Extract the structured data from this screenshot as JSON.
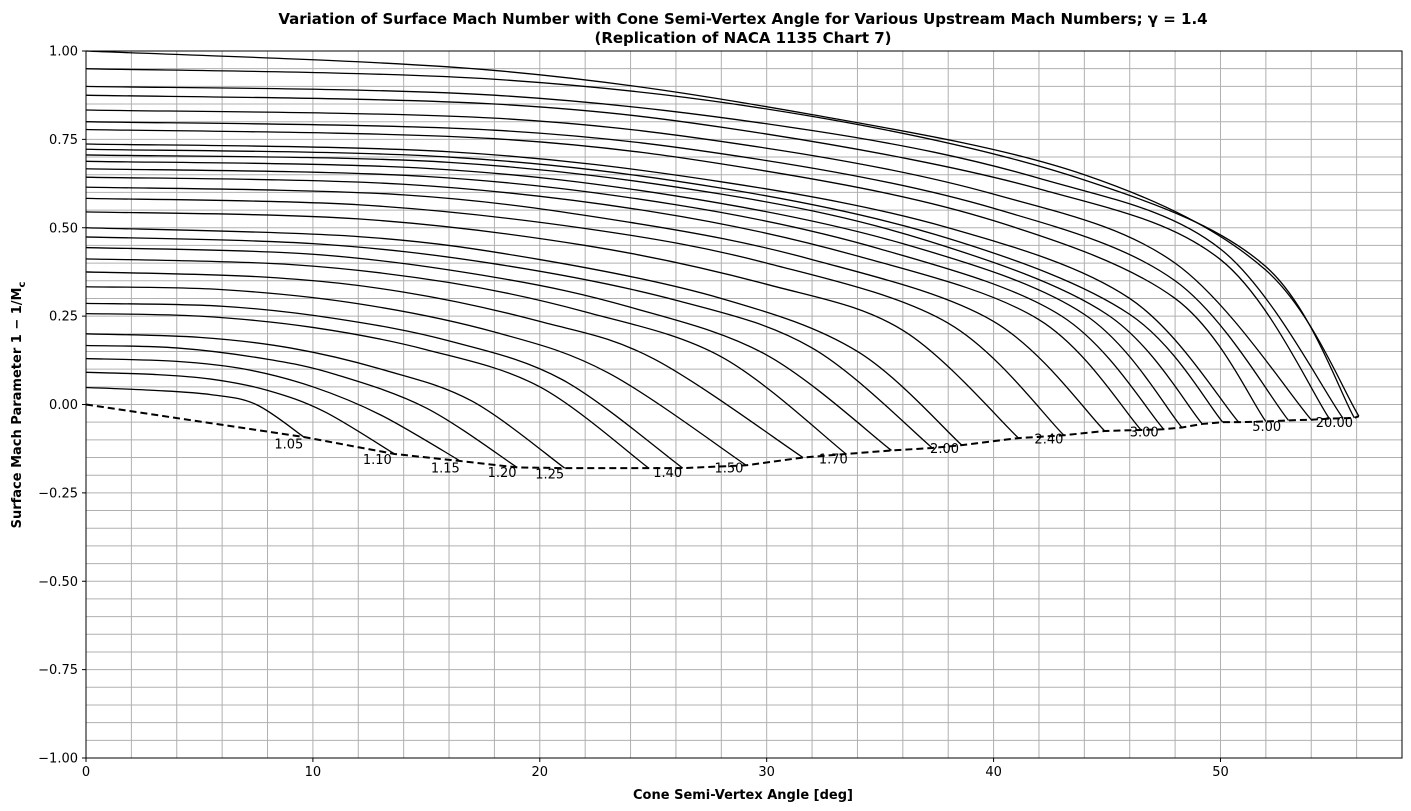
{
  "chart_data": {
    "type": "line",
    "title_line1": "Variation of Surface Mach Number with Cone Semi-Vertex Angle for Various Upstream Mach Numbers; γ = 1.4",
    "title_line2": "(Replication of NACA 1135 Chart 7)",
    "xlabel": "Cone Semi-Vertex Angle [deg]",
    "ylabel_main": "Surface Mach Parameter 1 − 1/M",
    "ylabel_sub": "c",
    "xlim": [
      0,
      58
    ],
    "ylim": [
      -1.0,
      1.0
    ],
    "x_ticks": [
      0,
      10,
      20,
      30,
      40,
      50
    ],
    "x_tick_labels": [
      "0",
      "10",
      "20",
      "30",
      "40",
      "50"
    ],
    "y_ticks": [
      -1.0,
      -0.75,
      -0.5,
      -0.25,
      0.0,
      0.25,
      0.5,
      0.75,
      1.0
    ],
    "y_tick_labels": [
      "−1.00",
      "−0.75",
      "−0.50",
      "−0.25",
      "0.00",
      "0.25",
      "0.50",
      "0.75",
      "1.00"
    ],
    "x_minor_step": 2,
    "y_minor_step": 0.05,
    "grid": true,
    "series": [
      {
        "values": [
          [
            0,
            0.048
          ],
          [
            3,
            0.04
          ],
          [
            5.5,
            0.028
          ],
          [
            7.5,
            0.0
          ],
          [
            9.6,
            -0.092
          ]
        ]
      },
      {
        "values": [
          [
            0,
            0.091
          ],
          [
            3,
            0.085
          ],
          [
            5.5,
            0.072
          ],
          [
            8,
            0.04
          ],
          [
            10.5,
            -0.02
          ],
          [
            13.6,
            -0.14
          ]
        ]
      },
      {
        "values": [
          [
            0,
            0.13
          ],
          [
            4,
            0.122
          ],
          [
            7,
            0.1
          ],
          [
            10,
            0.05
          ],
          [
            13,
            -0.03
          ],
          [
            16.5,
            -0.16
          ]
        ]
      },
      {
        "values": [
          [
            0,
            0.167
          ],
          [
            4,
            0.16
          ],
          [
            8,
            0.128
          ],
          [
            11,
            0.085
          ],
          [
            15,
            -0.01
          ],
          [
            19.0,
            -0.178
          ]
        ]
      },
      {
        "values": [
          [
            0,
            0.2
          ],
          [
            5,
            0.19
          ],
          [
            9,
            0.16
          ],
          [
            13,
            0.1
          ],
          [
            17,
            0.01
          ],
          [
            21.1,
            -0.18
          ]
        ]
      },
      {
        "values": [
          [
            0,
            0.257
          ],
          [
            5,
            0.25
          ],
          [
            10,
            0.218
          ],
          [
            15,
            0.155
          ],
          [
            20,
            0.05
          ],
          [
            24.8,
            -0.18
          ]
        ]
      },
      {
        "values": [
          [
            0,
            0.286
          ],
          [
            6,
            0.278
          ],
          [
            11,
            0.243
          ],
          [
            16,
            0.18
          ],
          [
            21,
            0.07
          ],
          [
            26.3,
            -0.18
          ]
        ]
      },
      {
        "values": [
          [
            0,
            0.333
          ],
          [
            6,
            0.325
          ],
          [
            12,
            0.285
          ],
          [
            18,
            0.205
          ],
          [
            23,
            0.09
          ],
          [
            29.1,
            -0.172
          ]
        ]
      },
      {
        "values": [
          [
            0,
            0.375
          ],
          [
            8,
            0.36
          ],
          [
            14,
            0.318
          ],
          [
            20,
            0.235
          ],
          [
            25,
            0.13
          ],
          [
            31.6,
            -0.15
          ]
        ]
      },
      {
        "values": [
          [
            0,
            0.412
          ],
          [
            9,
            0.396
          ],
          [
            16,
            0.345
          ],
          [
            22,
            0.262
          ],
          [
            28,
            0.135
          ],
          [
            33.5,
            -0.14
          ]
        ]
      },
      {
        "values": [
          [
            0,
            0.444
          ],
          [
            10,
            0.425
          ],
          [
            18,
            0.36
          ],
          [
            24,
            0.275
          ],
          [
            30,
            0.14
          ],
          [
            35.5,
            -0.13
          ]
        ]
      },
      {
        "values": [
          [
            0,
            0.474
          ],
          [
            10,
            0.455
          ],
          [
            18,
            0.398
          ],
          [
            26,
            0.295
          ],
          [
            32,
            0.16
          ],
          [
            37.3,
            -0.123
          ]
        ]
      },
      {
        "values": [
          [
            0,
            0.5
          ],
          [
            12,
            0.475
          ],
          [
            20,
            0.41
          ],
          [
            28,
            0.3
          ],
          [
            34,
            0.15
          ],
          [
            38.6,
            -0.115
          ]
        ]
      },
      {
        "values": [
          [
            0,
            0.545
          ],
          [
            12,
            0.525
          ],
          [
            22,
            0.45
          ],
          [
            30,
            0.34
          ],
          [
            36,
            0.21
          ],
          [
            41.1,
            -0.095
          ]
        ]
      },
      {
        "values": [
          [
            0,
            0.583
          ],
          [
            12,
            0.565
          ],
          [
            22,
            0.498
          ],
          [
            30,
            0.4
          ],
          [
            38,
            0.23
          ],
          [
            43.1,
            -0.087
          ]
        ]
      },
      {
        "values": [
          [
            0,
            0.615
          ],
          [
            14,
            0.593
          ],
          [
            24,
            0.515
          ],
          [
            32,
            0.41
          ],
          [
            40,
            0.235
          ],
          [
            44.9,
            -0.075
          ]
        ]
      },
      {
        "values": [
          [
            0,
            0.643
          ],
          [
            14,
            0.623
          ],
          [
            25,
            0.545
          ],
          [
            34,
            0.42
          ],
          [
            42,
            0.24
          ],
          [
            46.5,
            -0.072
          ]
        ]
      },
      {
        "values": [
          [
            0,
            0.667
          ],
          [
            15,
            0.645
          ],
          [
            26,
            0.565
          ],
          [
            35,
            0.44
          ],
          [
            43,
            0.25
          ],
          [
            47.5,
            -0.07
          ]
        ]
      },
      {
        "values": [
          [
            0,
            0.688
          ],
          [
            15,
            0.668
          ],
          [
            26,
            0.59
          ],
          [
            36,
            0.455
          ],
          [
            44,
            0.255
          ],
          [
            48.3,
            -0.065
          ]
        ]
      },
      {
        "values": [
          [
            0,
            0.706
          ],
          [
            16,
            0.685
          ],
          [
            28,
            0.595
          ],
          [
            37,
            0.465
          ],
          [
            45,
            0.255
          ],
          [
            49.2,
            -0.055
          ]
        ]
      },
      {
        "values": [
          [
            0,
            0.722
          ],
          [
            16,
            0.7
          ],
          [
            28,
            0.612
          ],
          [
            38,
            0.47
          ],
          [
            46,
            0.255
          ],
          [
            50.1,
            -0.05
          ]
        ]
      },
      {
        "values": [
          [
            0,
            0.737
          ],
          [
            16,
            0.715
          ],
          [
            28,
            0.63
          ],
          [
            38,
            0.5
          ],
          [
            46,
            0.3
          ],
          [
            50.8,
            -0.05
          ]
        ]
      },
      {
        "values": [
          [
            0,
            0.778
          ],
          [
            18,
            0.752
          ],
          [
            30,
            0.66
          ],
          [
            40,
            0.52
          ],
          [
            48,
            0.3
          ],
          [
            52.0,
            -0.048
          ]
        ]
      },
      {
        "values": [
          [
            0,
            0.8
          ],
          [
            18,
            0.776
          ],
          [
            30,
            0.69
          ],
          [
            40,
            0.555
          ],
          [
            48,
            0.35
          ],
          [
            53.0,
            -0.045
          ]
        ]
      },
      {
        "values": [
          [
            0,
            0.833
          ],
          [
            18,
            0.81
          ],
          [
            30,
            0.725
          ],
          [
            40,
            0.595
          ],
          [
            48,
            0.4
          ],
          [
            54.0,
            -0.043
          ]
        ]
      },
      {
        "values": [
          [
            0,
            0.875
          ],
          [
            18,
            0.85
          ],
          [
            30,
            0.765
          ],
          [
            42,
            0.61
          ],
          [
            50,
            0.41
          ],
          [
            54.8,
            -0.04
          ]
        ]
      },
      {
        "values": [
          [
            0,
            0.9
          ],
          [
            18,
            0.875
          ],
          [
            32,
            0.775
          ],
          [
            42,
            0.64
          ],
          [
            50,
            0.44
          ],
          [
            55.4,
            -0.039
          ]
        ]
      },
      {
        "values": [
          [
            0,
            0.95
          ],
          [
            18,
            0.92
          ],
          [
            32,
            0.815
          ],
          [
            44,
            0.635
          ],
          [
            52,
            0.39
          ],
          [
            55.9,
            -0.038
          ]
        ]
      },
      {
        "values": [
          [
            0,
            1.0
          ],
          [
            18,
            0.945
          ],
          [
            32,
            0.82
          ],
          [
            44,
            0.65
          ],
          [
            52,
            0.38
          ],
          [
            56.1,
            -0.033
          ]
        ]
      }
    ],
    "limit_line": [
      [
        0,
        0.0
      ],
      [
        5,
        -0.048
      ],
      [
        9.6,
        -0.092
      ],
      [
        13.6,
        -0.14
      ],
      [
        16.5,
        -0.16
      ],
      [
        19.0,
        -0.178
      ],
      [
        21.1,
        -0.18
      ],
      [
        24.8,
        -0.18
      ],
      [
        26.3,
        -0.18
      ],
      [
        29.1,
        -0.172
      ],
      [
        31.6,
        -0.15
      ],
      [
        33.5,
        -0.14
      ],
      [
        35.5,
        -0.13
      ],
      [
        37.3,
        -0.123
      ],
      [
        38.6,
        -0.115
      ],
      [
        41.1,
        -0.095
      ],
      [
        43.1,
        -0.087
      ],
      [
        44.9,
        -0.075
      ],
      [
        46.5,
        -0.072
      ],
      [
        47.5,
        -0.07
      ],
      [
        48.3,
        -0.065
      ],
      [
        49.2,
        -0.055
      ],
      [
        50.1,
        -0.05
      ],
      [
        50.8,
        -0.05
      ],
      [
        52.0,
        -0.048
      ],
      [
        53.0,
        -0.045
      ],
      [
        54.0,
        -0.043
      ],
      [
        54.8,
        -0.04
      ],
      [
        55.4,
        -0.039
      ],
      [
        55.9,
        -0.038
      ],
      [
        56.1,
        -0.033
      ]
    ],
    "curve_labels": [
      {
        "text": "1.05",
        "x": 8.3,
        "y": -0.125
      },
      {
        "text": "1.10",
        "x": 12.2,
        "y": -0.168
      },
      {
        "text": "1.15",
        "x": 15.2,
        "y": -0.192
      },
      {
        "text": "1.20",
        "x": 17.7,
        "y": -0.205
      },
      {
        "text": "1.25",
        "x": 19.8,
        "y": -0.21
      },
      {
        "text": "1.40",
        "x": 25.0,
        "y": -0.205
      },
      {
        "text": "1.50",
        "x": 27.7,
        "y": -0.193
      },
      {
        "text": "1.70",
        "x": 32.3,
        "y": -0.167
      },
      {
        "text": "2.00",
        "x": 37.2,
        "y": -0.137
      },
      {
        "text": "2.40",
        "x": 41.8,
        "y": -0.11
      },
      {
        "text": "3.00",
        "x": 46.0,
        "y": -0.09
      },
      {
        "text": "5.00",
        "x": 51.4,
        "y": -0.075
      },
      {
        "text": "20.00",
        "x": 54.2,
        "y": -0.063
      }
    ]
  }
}
